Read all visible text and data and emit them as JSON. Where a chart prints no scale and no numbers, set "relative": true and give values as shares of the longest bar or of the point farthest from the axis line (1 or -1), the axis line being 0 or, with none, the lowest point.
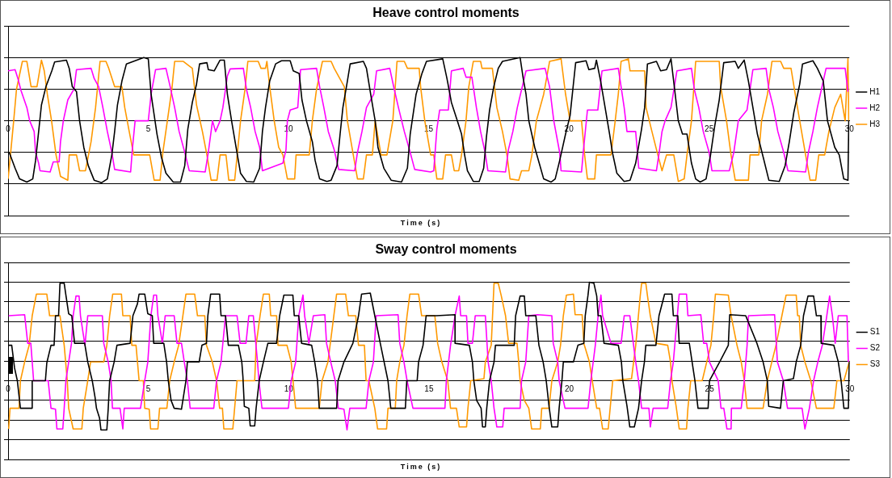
{
  "chart_data": [
    {
      "type": "line",
      "title": "Heave control moments",
      "xlabel": "Time (s)",
      "relative": true,
      "xlim": [
        0,
        30
      ],
      "xticks": [
        0,
        5,
        10,
        15,
        20,
        25,
        30
      ],
      "grid": "y",
      "legend": "right",
      "marker": "none",
      "series": [
        {
          "name": "H1",
          "color": "#000000",
          "x": [
            0.04,
            0.25,
            0.41,
            0.67,
            0.88,
            0.98,
            1.09,
            1.19,
            1.35,
            1.56,
            1.66,
            2.08,
            2.18,
            2.29,
            2.44,
            2.55,
            2.7,
            2.86,
            3.07,
            3.33,
            3.54,
            3.7,
            3.8,
            3.9,
            4.06,
            4.22,
            4.84,
            5,
            5.1,
            5.31,
            5.47,
            5.63,
            5.89,
            6.15,
            6.3,
            6.41,
            6.57,
            6.72,
            6.83,
            7.09,
            7.14,
            7.35,
            7.56,
            7.71,
            7.82,
            7.97,
            8.13,
            8.29,
            8.5,
            8.76,
            8.97,
            9.07,
            9.18,
            9.33,
            9.54,
            9.75,
            10.06,
            10.17,
            10.38,
            10.48,
            10.64,
            10.85,
            10.95,
            11.11,
            11.37,
            11.52,
            11.73,
            11.84,
            11.94,
            12.1,
            12.2,
            12.67,
            12.78,
            12.93,
            13.09,
            13.19,
            13.4,
            13.66,
            14.03,
            14.24,
            14.34,
            14.55,
            14.76,
            14.92,
            15.5,
            15.65,
            15.81,
            16.02,
            16.17,
            16.28,
            16.38,
            16.59,
            16.8,
            16.96,
            17.06,
            17.17,
            17.32,
            17.48,
            17.63,
            18.26,
            18.37,
            18.47,
            18.57,
            18.78,
            18.94,
            19.1,
            19.36,
            19.51,
            19.67,
            19.88,
            20.04,
            20.14,
            20.24,
            20.61,
            20.71,
            20.92,
            20.98,
            21.13,
            21.29,
            21.45,
            21.55,
            21.71,
            21.97,
            22.18,
            22.38,
            22.59,
            22.7,
            22.8,
            23.12,
            23.27,
            23.48,
            23.64,
            23.79,
            23.9,
            24.05,
            24.21,
            24.37,
            24.52,
            24.68,
            24.89,
            25.05,
            25.2,
            25.36,
            25.52,
            25.93,
            26.04,
            26.25,
            26.4,
            26.56,
            26.72,
            26.93,
            27.13,
            27.5,
            27.71,
            27.86,
            28.02,
            28.23,
            28.33,
            28.7,
            28.86,
            29.07,
            29.22,
            29.48,
            29.64,
            29.8,
            29.95,
            29.98
          ],
          "values": [
            -0.5,
            -0.75,
            -0.92,
            -0.97,
            -0.92,
            -0.63,
            -0.17,
            0.25,
            0.54,
            0.79,
            0.93,
            0.96,
            0.83,
            0.54,
            0.46,
            0,
            -0.42,
            -0.71,
            -0.94,
            -0.98,
            -0.92,
            -0.54,
            -0.17,
            0.25,
            0.63,
            0.9,
            1,
            0.98,
            0.42,
            -0.21,
            -0.58,
            -0.83,
            -0.97,
            -0.97,
            -0.71,
            -0.13,
            0.29,
            0.58,
            0.9,
            0.92,
            0.81,
            0.79,
            0.96,
            0.96,
            0.42,
            0,
            -0.42,
            -0.83,
            -0.96,
            -0.97,
            -0.75,
            -0.17,
            0.21,
            0.63,
            0.9,
            0.95,
            0.95,
            0.79,
            0.75,
            0.33,
            0,
            -0.33,
            -0.63,
            -0.92,
            -0.96,
            -0.94,
            -0.71,
            -0.21,
            0.21,
            0.63,
            0.9,
            0.94,
            0.83,
            0.42,
            0,
            -0.42,
            -0.75,
            -0.94,
            -0.97,
            -0.75,
            -0.21,
            0.42,
            0.75,
            0.94,
            0.98,
            0.67,
            0.29,
            0,
            -0.21,
            -0.54,
            -0.79,
            -0.96,
            -0.96,
            -0.75,
            -0.25,
            0.17,
            0.54,
            0.83,
            0.94,
            1,
            0.67,
            0.42,
            0,
            -0.42,
            -0.67,
            -0.92,
            -0.97,
            -0.92,
            -0.63,
            -0.21,
            0.08,
            0.5,
            0.92,
            0.95,
            0.81,
            0.83,
            0.96,
            0.63,
            0.21,
            -0.21,
            -0.5,
            -0.83,
            -0.96,
            -0.94,
            -0.67,
            -0.13,
            0.21,
            0.9,
            0.94,
            0.79,
            0.81,
            0.98,
            0.42,
            0,
            -0.21,
            -0.21,
            -0.67,
            -0.92,
            -0.97,
            -0.92,
            -0.54,
            -0.08,
            0.33,
            0.92,
            0.94,
            0.83,
            0.96,
            0.63,
            0.21,
            -0.21,
            -0.58,
            -0.94,
            -0.96,
            -0.71,
            -0.33,
            0.13,
            0.58,
            0.9,
            0.95,
            0.83,
            0.63,
            0,
            -0.42,
            -0.54,
            -0.92,
            -0.94,
            0
          ]
        },
        {
          "name": "H2",
          "color": "#ff00ff",
          "x": [
            0,
            0.25,
            0.35,
            0.46,
            0.67,
            0.77,
            0.93,
            0.98,
            1.09,
            1.14,
            1.5,
            1.61,
            1.82,
            1.87,
            1.97,
            2.13,
            2.35,
            2.44,
            2.96,
            3.07,
            3.23,
            3.38,
            3.54,
            3.7,
            3.8,
            4.37,
            4.43,
            4.53,
            5,
            5.1,
            5.26,
            5.63,
            5.78,
            5.94,
            6.1,
            6.3,
            6.46,
            7.03,
            7.14,
            7.29,
            7.4,
            7.56,
            7.66,
            7.82,
            7.92,
            8.39,
            8.5,
            8.65,
            8.81,
            8.97,
            9.07,
            9.8,
            9.91,
            9.96,
            10.06,
            10.33,
            10.43,
            11,
            11.11,
            11.26,
            11.42,
            11.63,
            11.79,
            12.36,
            12.46,
            12.62,
            12.78,
            13.04,
            13.14,
            13.61,
            13.77,
            13.92,
            14.13,
            14.34,
            14.5,
            15.07,
            15.18,
            15.29,
            15.39,
            15.7,
            15.81,
            16.23,
            16.33,
            16.54,
            16.7,
            16.85,
            17.01,
            17.11,
            17.74,
            17.84,
            18,
            18.16,
            18.47,
            19.15,
            19.31,
            19.46,
            19.67,
            19.72,
            20.45,
            20.51,
            20.66,
            21.03,
            21.18,
            21.76,
            21.86,
            21.97,
            22.07,
            22.38,
            22.49,
            23.12,
            23.22,
            23.32,
            23.43,
            23.64,
            23.85,
            24.37,
            24.47,
            24.63,
            24.79,
            25,
            25.1,
            25.72,
            25.88,
            26.04,
            26.35,
            26.56,
            27.03,
            27.13,
            27.29,
            27.45,
            27.66,
            27.81,
            28.44,
            28.54,
            28.7,
            28.86,
            29.17,
            29.85,
            29.95
          ],
          "values": [
            0.79,
            0.81,
            0.67,
            0.48,
            0.21,
            0,
            -0.17,
            -0.5,
            -0.67,
            -0.79,
            -0.81,
            -0.65,
            -0.65,
            -0.33,
            0,
            0.33,
            0.5,
            0.81,
            0.83,
            0.67,
            0.54,
            0.21,
            -0.17,
            -0.5,
            -0.77,
            -0.81,
            -0.46,
            0,
            0,
            0.42,
            0.81,
            0.83,
            0.54,
            0.21,
            -0.17,
            -0.5,
            -0.79,
            -0.81,
            -0.5,
            0,
            -0.17,
            0,
            0.21,
            0.71,
            0.82,
            0.83,
            0.5,
            0.21,
            -0.17,
            -0.42,
            -0.79,
            -0.67,
            -0.46,
            0,
            0.17,
            0.21,
            0.81,
            0.83,
            0.54,
            0.21,
            -0.17,
            -0.46,
            -0.77,
            -0.79,
            -0.5,
            -0.17,
            0.21,
            0.42,
            0.79,
            0.83,
            0.5,
            0.21,
            -0.17,
            -0.5,
            -0.77,
            -0.81,
            -0.79,
            -0.13,
            0.17,
            0.17,
            0.79,
            0.83,
            0.69,
            0.69,
            0.21,
            -0.17,
            -0.5,
            -0.79,
            -0.81,
            -0.46,
            -0.17,
            0.21,
            0.79,
            0.83,
            0.54,
            0,
            -0.5,
            -0.79,
            -0.81,
            -0.5,
            0.17,
            0.17,
            0.79,
            0.83,
            0.54,
            0.21,
            -0.17,
            -0.17,
            -0.75,
            -0.79,
            -0.5,
            -0.17,
            0,
            0.21,
            0.79,
            0.83,
            0.5,
            0.21,
            -0.17,
            -0.5,
            -0.79,
            -0.79,
            -0.5,
            0,
            0.17,
            0.81,
            0.83,
            0.5,
            0.21,
            -0.17,
            -0.5,
            -0.79,
            -0.81,
            -0.5,
            -0.17,
            0.21,
            0.83,
            0.83,
            0.46
          ]
        },
        {
          "name": "H3",
          "color": "#ff9900",
          "x": [
            0,
            0.04,
            0.2,
            0.3,
            0.51,
            0.67,
            0.82,
            1.03,
            1.19,
            1.29,
            1.4,
            1.55,
            1.71,
            1.87,
            2.13,
            2.18,
            2.44,
            2.55,
            2.76,
            2.96,
            3.12,
            3.28,
            3.49,
            3.59,
            3.8,
            4.06,
            4.16,
            4.32,
            4.48,
            5.05,
            5.21,
            5.42,
            5.52,
            5.68,
            5.84,
            5.94,
            6.25,
            6.57,
            6.72,
            6.93,
            7.09,
            7.24,
            7.45,
            7.56,
            7.77,
            7.87,
            8.08,
            8.18,
            8.29,
            8.45,
            8.55,
            8.92,
            9.02,
            9.18,
            9.23,
            9.33,
            9.49,
            9.65,
            9.8,
            9.96,
            10.22,
            10.27,
            10.74,
            10.85,
            11,
            11.21,
            11.52,
            11.63,
            11.99,
            12.1,
            12.31,
            12.46,
            12.67,
            12.78,
            12.99,
            13.09,
            13.3,
            13.51,
            13.72,
            13.87,
            14.13,
            14.24,
            14.66,
            14.71,
            14.86,
            15.07,
            15.18,
            15.29,
            15.5,
            15.6,
            15.81,
            15.91,
            16.07,
            16.17,
            16.33,
            16.43,
            16.59,
            16.85,
            16.9,
            17.27,
            17.43,
            17.63,
            17.79,
            17.9,
            18.21,
            18.31,
            18.57,
            18.68,
            18.84,
            19.1,
            19.31,
            19.72,
            19.88,
            20.04,
            20.45,
            20.56,
            20.66,
            20.92,
            20.98,
            21.5,
            21.65,
            21.76,
            21.86,
            22.12,
            22.18,
            22.7,
            22.75,
            22.96,
            23.17,
            23.32,
            23.48,
            23.74,
            23.9,
            24.11,
            24.21,
            24.37,
            24.52,
            25.36,
            25.41,
            25.62,
            25.78,
            25.93,
            26.4,
            26.46,
            26.77,
            26.87,
            27.08,
            27.24,
            27.55,
            27.66,
            27.92,
            28.07,
            28.23,
            28.44,
            28.6,
            28.8,
            28.91,
            29.12,
            29.27,
            29.48,
            29.69,
            29.85,
            29.95,
            29.98
          ],
          "values": [
            -0.92,
            -0.75,
            0,
            0.5,
            0.94,
            0.94,
            0.54,
            0.54,
            0.96,
            0.79,
            0.42,
            0,
            -0.54,
            -0.88,
            -0.94,
            -0.54,
            -0.54,
            -0.79,
            -0.79,
            -0.33,
            0.21,
            0.94,
            0.94,
            0.83,
            0.54,
            0.54,
            0.21,
            -0.17,
            -0.54,
            -0.54,
            -0.94,
            -0.94,
            -0.5,
            0,
            0.5,
            0.94,
            0.94,
            0.83,
            0.25,
            -0.17,
            -0.54,
            -0.94,
            -0.94,
            -0.54,
            -0.54,
            -0.94,
            -0.94,
            -0.5,
            0,
            0.5,
            0.94,
            0.94,
            0.83,
            0.83,
            0.94,
            0.54,
            0,
            -0.42,
            -0.54,
            -0.92,
            -0.92,
            -0.54,
            -0.54,
            0,
            0.5,
            0.94,
            0.94,
            0.83,
            0.54,
            0,
            -0.54,
            -0.92,
            -0.92,
            -0.54,
            -0.54,
            0,
            -0.54,
            -0.54,
            0,
            0.94,
            0.94,
            0.83,
            0.83,
            0.54,
            0,
            -0.54,
            -0.54,
            -0.92,
            -0.92,
            -0.54,
            -0.54,
            -0.79,
            -0.79,
            -0.54,
            0,
            0.54,
            0.94,
            0.94,
            0.83,
            0.83,
            0.21,
            -0.17,
            -0.54,
            -0.92,
            -0.94,
            -0.79,
            -0.79,
            -0.54,
            0,
            0.42,
            0.94,
            0.98,
            0.42,
            0,
            0,
            -0.54,
            -0.92,
            -0.92,
            -0.54,
            -0.54,
            0,
            0.42,
            0.94,
            0.98,
            0.79,
            0.79,
            0.21,
            -0.17,
            -0.54,
            -0.79,
            -0.54,
            -0.54,
            -0.96,
            -0.92,
            -0.54,
            0,
            0.94,
            0.94,
            0.54,
            0,
            -0.54,
            -0.94,
            -0.94,
            -0.54,
            -0.54,
            0,
            0.42,
            0.94,
            0.94,
            0.83,
            0.83,
            0.42,
            0,
            -0.54,
            -0.94,
            -0.94,
            -0.54,
            -0.54,
            -0.17,
            0.21,
            0.42,
            0,
            0.98,
            0
          ]
        }
      ]
    },
    {
      "type": "line",
      "title": "Sway control moments",
      "xlabel": "Time (s)",
      "relative": true,
      "xlim": [
        0,
        30
      ],
      "xticks": [
        0,
        5,
        10,
        15,
        20,
        25,
        30
      ],
      "grid": "y",
      "legend": "right",
      "marker": "none",
      "series": [
        {
          "name": "S1",
          "color": "#000000",
          "x": [
            0.02,
            0.13,
            0.23,
            0.33,
            0.44,
            0.86,
            0.86,
            1.33,
            1.38,
            1.53,
            1.64,
            1.69,
            1.8,
            1.85,
            2,
            2.06,
            2.16,
            2.27,
            2.37,
            2.73,
            2.84,
            3,
            3.1,
            3.15,
            3.26,
            3.31,
            3.52,
            3.57,
            3.62,
            3.78,
            3.88,
            4.35,
            4.45,
            4.61,
            4.67,
            4.87,
            4.98,
            5.14,
            5.19,
            5.55,
            5.65,
            5.71,
            5.81,
            5.92,
            6.18,
            6.34,
            6.39,
            6.81,
            6.91,
            7.07,
            7.12,
            7.22,
            7.54,
            7.59,
            7.75,
            7.85,
            8.21,
            8.33,
            8.37,
            8.42,
            8.58,
            8.63,
            8.79,
            8.84,
            8.95,
            9.1,
            9.26,
            9.57,
            9.68,
            9.83,
            10.15,
            10.2,
            10.36,
            10.46,
            10.82,
            10.93,
            11.03,
            11.09,
            11.71,
            11.76,
            11.97,
            12.29,
            12.49,
            12.6,
            12.91,
            13.07,
            13.28,
            13.54,
            13.64,
            14.16,
            14.21,
            14.58,
            14.63,
            14.79,
            14.9,
            15.26,
            15.93,
            15.93,
            16.44,
            16.55,
            16.6,
            16.7,
            16.86,
            16.91,
            17.01,
            17.06,
            17.16,
            17.32,
            17.37,
            18.04,
            18.09,
            18.25,
            18.4,
            18.45,
            18.81,
            18.92,
            19.07,
            19.18,
            19.28,
            19.38,
            19.59,
            19.64,
            19.74,
            19.79,
            20.15,
            20.31,
            20.52,
            20.57,
            20.67,
            20.72,
            20.88,
            20.98,
            21.03,
            21.13,
            21.24,
            21.75,
            21.86,
            21.91,
            22.06,
            22.16,
            22.32,
            22.47,
            22.58,
            22.68,
            22.73,
            23.09,
            23.2,
            23.4,
            23.66,
            23.71,
            23.87,
            23.92,
            24.28,
            24.38,
            24.48,
            24.59,
            24.95,
            25,
            25.36,
            25.67,
            25.72,
            26.29,
            26.69,
            26.91,
            27.06,
            27.11,
            27.53,
            27.63,
            27.99,
            28.09,
            28.25,
            28.35,
            28.51,
            28.71,
            28.81,
            28.97,
            28.98,
            29.43,
            29.59,
            29.69,
            29.79,
            29.95,
            29.98
          ],
          "values": [
            0.36,
            0.36,
            0.13,
            0,
            -0.28,
            -0.28,
            0,
            0,
            0.18,
            0.36,
            0.36,
            0.66,
            0.66,
            0.99,
            0.99,
            0.87,
            0.68,
            0.66,
            0.38,
            0.38,
            0.19,
            0,
            -0.17,
            -0.28,
            -0.38,
            -0.5,
            -0.5,
            -0.28,
            0,
            0.19,
            0.36,
            0.38,
            0.66,
            0.78,
            0.88,
            0.88,
            0.68,
            0.66,
            0.38,
            0.38,
            0.19,
            0,
            -0.2,
            -0.28,
            -0.29,
            0,
            0.19,
            0.19,
            0.36,
            0.38,
            0.66,
            0.88,
            0.88,
            0.66,
            0.66,
            0.36,
            0.36,
            0.19,
            0.04,
            -0.26,
            -0.28,
            -0.46,
            -0.46,
            -0.28,
            0,
            0.19,
            0.38,
            0.38,
            0.66,
            0.87,
            0.87,
            0.66,
            0.66,
            0.38,
            0.36,
            0.19,
            0,
            -0.28,
            -0.28,
            0,
            0.19,
            0.38,
            0.66,
            0.88,
            0.89,
            0.66,
            0.36,
            0,
            -0.28,
            -0.28,
            0,
            0,
            0.19,
            0.36,
            0.66,
            0.66,
            0.67,
            0.38,
            0.36,
            0.19,
            0,
            -0.2,
            -0.28,
            -0.47,
            -0.47,
            -0.28,
            0,
            0.19,
            0.36,
            0.36,
            0.66,
            0.86,
            0.86,
            0.66,
            0.66,
            0.36,
            0.19,
            0,
            -0.26,
            -0.47,
            -0.47,
            -0.28,
            0,
            0.19,
            0.19,
            0.36,
            0.38,
            0.66,
            0.87,
            1,
            0.99,
            0.86,
            0.66,
            0.66,
            0.38,
            0.36,
            0.19,
            0,
            -0.26,
            -0.47,
            -0.47,
            -0.28,
            0,
            0.19,
            0.36,
            0.36,
            0.66,
            0.88,
            0.88,
            0.66,
            0.66,
            0.38,
            0.38,
            0.19,
            0,
            -0.28,
            -0.28,
            0,
            0.19,
            0.36,
            0.67,
            0.66,
            0.38,
            0.19,
            0,
            -0.26,
            -0.28,
            0,
            0.02,
            0.19,
            0.36,
            0.66,
            0.86,
            0.86,
            0.66,
            0.66,
            0.38,
            0.36,
            0.19,
            0,
            -0.28,
            -0.28,
            0.19
          ]
        },
        {
          "name": "S2",
          "color": "#ff00ff",
          "x": [
            0.02,
            0.59,
            0.7,
            0.81,
            0.91,
            1.43,
            1.53,
            1.69,
            1.74,
            1.95,
            2,
            2.06,
            2.16,
            2.26,
            2.32,
            2.42,
            2.53,
            2.58,
            2.74,
            2.84,
            3.36,
            3.41,
            3.57,
            3.67,
            3.72,
            3.99,
            4.09,
            4.14,
            4.72,
            4.87,
            4.98,
            5.09,
            5.19,
            5.29,
            5.34,
            5.5,
            5.6,
            5.92,
            6.02,
            6.18,
            6.28,
            6.39,
            6.49,
            7.33,
            7.43,
            7.59,
            7.75,
            8.16,
            8.27,
            8.48,
            8.58,
            8.74,
            8.89,
            8.94,
            9.05,
            9.99,
            10.09,
            10.25,
            10.36,
            10.51,
            10.57,
            10.72,
            10.88,
            11.29,
            11.35,
            11.5,
            11.66,
            11.77,
            11.97,
            12.08,
            12.18,
            12.76,
            12.86,
            13.02,
            13.12,
            13.9,
            13.96,
            14.11,
            14.22,
            14.43,
            15.57,
            15.62,
            15.77,
            15.93,
            16.08,
            16.13,
            16.34,
            16.39,
            16.55,
            16.65,
            17.01,
            17.11,
            17.22,
            17.32,
            17.42,
            17.63,
            17.68,
            18.25,
            18.3,
            18.45,
            18.56,
            18.87,
            19.38,
            19.43,
            19.59,
            19.64,
            19.85,
            20.67,
            20.77,
            20.93,
            21.03,
            21.13,
            21.19,
            21.49,
            21.85,
            21.96,
            22.16,
            22.37,
            22.47,
            22.58,
            22.84,
            22.89,
            22.99,
            23.51,
            23.61,
            23.71,
            23.92,
            24.18,
            24.23,
            24.69,
            24.79,
            24.9,
            25,
            25.31,
            25.41,
            25.51,
            25.62,
            25.77,
            25.78,
            26.13,
            26.24,
            26.34,
            26.39,
            27.32,
            27.42,
            27.63,
            27.78,
            28.3,
            28.4,
            28.56,
            28.71,
            28.86,
            29.02,
            29.18,
            29.28,
            29.38,
            29.48,
            29.59,
            29.9,
            29.95
          ],
          "values": [
            0.66,
            0.67,
            0.38,
            0.38,
            0,
            0,
            -0.28,
            -0.29,
            -0.49,
            -0.49,
            -0.28,
            0,
            0.19,
            0.38,
            0.66,
            0.86,
            0.86,
            0.66,
            0.36,
            0.66,
            0.66,
            0.38,
            0.19,
            0,
            -0.28,
            -0.28,
            -0.49,
            -0.28,
            -0.28,
            0,
            0.19,
            0.66,
            0.87,
            0.87,
            0.66,
            0.38,
            0.66,
            0.66,
            0.38,
            0.38,
            0.19,
            0,
            -0.28,
            -0.28,
            0,
            0.19,
            0.66,
            0.66,
            0.38,
            0.38,
            0.66,
            0.66,
            0.19,
            0,
            -0.28,
            -0.28,
            0,
            0.19,
            0.66,
            0.87,
            0.66,
            0.38,
            0.66,
            0.67,
            0.38,
            0.19,
            0,
            -0.28,
            -0.29,
            -0.5,
            -0.28,
            -0.28,
            0,
            0.19,
            0.66,
            0.67,
            0.38,
            0.19,
            0,
            -0.28,
            -0.28,
            0,
            0.36,
            0.66,
            0.86,
            0.66,
            0.66,
            0.38,
            0.38,
            0.66,
            0.66,
            0.19,
            0,
            -0.28,
            -0.47,
            -0.47,
            -0.28,
            -0.28,
            0,
            0.19,
            0.66,
            0.67,
            0.66,
            0.38,
            0.19,
            0,
            -0.28,
            -0.28,
            0,
            0.36,
            0.66,
            0.87,
            0.66,
            0.38,
            0.38,
            0.66,
            0.66,
            0.19,
            0,
            -0.28,
            -0.28,
            -0.47,
            -0.28,
            -0.28,
            0,
            0.19,
            0.88,
            0.88,
            0.66,
            0.67,
            0.38,
            0.38,
            0.19,
            0,
            -0.28,
            -0.28,
            -0.49,
            -0.49,
            -0.28,
            -0.28,
            0,
            0.36,
            0.66,
            0.67,
            0.19,
            0,
            -0.28,
            -0.28,
            -0.49,
            -0.28,
            0,
            0.19,
            0.36,
            0.66,
            0.86,
            0.66,
            0.38,
            0.66,
            0.66,
            0.19
          ]
        },
        {
          "name": "S3",
          "color": "#ff9900",
          "x": [
            0.02,
            0.07,
            0.39,
            0.44,
            0.59,
            0.75,
            0.86,
            1.01,
            1.38,
            1.48,
            1.85,
            2,
            2.11,
            2.16,
            2.32,
            2.63,
            2.68,
            2.84,
            2.94,
            3.41,
            3.52,
            3.62,
            3.73,
            4.04,
            4.09,
            4.35,
            4.41,
            4.56,
            4.67,
            4.82,
            4.87,
            5.03,
            5.08,
            5.34,
            5.4,
            5.66,
            5.76,
            5.92,
            6.08,
            6.23,
            6.34,
            6.65,
            6.75,
            7.01,
            7.07,
            7.28,
            7.43,
            7.54,
            7.64,
            7.69,
            8.01,
            8.16,
            8.79,
            8.84,
            8.98,
            9.1,
            9.31,
            9.36,
            9.57,
            9.62,
            9.94,
            10.09,
            10.25,
            11.09,
            11.19,
            11.4,
            11.61,
            11.71,
            12.03,
            12.13,
            12.39,
            12.49,
            12.7,
            12.76,
            12.86,
            13.07,
            13.17,
            13.49,
            13.54,
            13.8,
            13.85,
            13.96,
            14.11,
            14.22,
            14.32,
            14.63,
            14.74,
            15.21,
            15.31,
            15.46,
            15.67,
            15.77,
            15.98,
            16.08,
            16.34,
            16.39,
            16.49,
            16.96,
            17.01,
            17.22,
            17.32,
            17.47,
            17.58,
            17.73,
            17.84,
            18.14,
            18.2,
            18.25,
            18.4,
            18.56,
            18.66,
            18.97,
            19.02,
            19.28,
            19.38,
            19.59,
            19.69,
            19.79,
            19.9,
            20.15,
            20.21,
            20.46,
            20.52,
            20.72,
            20.82,
            20.98,
            21.08,
            21.19,
            21.39,
            21.55,
            22.22,
            22.37,
            22.53,
            22.58,
            22.73,
            22.79,
            22.89,
            23.09,
            23.51,
            23.61,
            23.66,
            23.81,
            23.92,
            24.18,
            24.23,
            24.33,
            24.74,
            24.9,
            25.05,
            25.15,
            25.21,
            25.67,
            25.77,
            25.98,
            26.13,
            26.24,
            26.34,
            26.91,
            27.06,
            27.22,
            27.37,
            27.58,
            27.73,
            28.09,
            28.14,
            28.2,
            28.25,
            28.4,
            28.61,
            28.81,
            29.43,
            29.54,
            29.79,
            29.98
          ],
          "values": [
            -0.49,
            -0.28,
            -0.28,
            0,
            0.19,
            0.36,
            0.66,
            0.88,
            0.88,
            0.66,
            0.66,
            0.36,
            0,
            -0.28,
            -0.49,
            -0.49,
            -0.28,
            0,
            0.19,
            0.19,
            0.36,
            0.66,
            0.88,
            0.88,
            0.66,
            0.66,
            0.36,
            0.36,
            0,
            0,
            -0.28,
            -0.29,
            -0.49,
            -0.49,
            -0.28,
            -0.28,
            0,
            0.19,
            0.36,
            0.66,
            0.88,
            0.88,
            0.66,
            0.66,
            0.36,
            0.19,
            0,
            -0.28,
            -0.28,
            -0.49,
            -0.49,
            0,
            0,
            0.36,
            0.66,
            0.88,
            0.88,
            0.66,
            0.66,
            0.36,
            0.36,
            0.19,
            -0.28,
            -0.28,
            0,
            0.19,
            0.66,
            0.88,
            0.88,
            0.66,
            0.66,
            0.36,
            0.36,
            0,
            0,
            -0.28,
            -0.49,
            -0.49,
            -0.28,
            -0.28,
            0,
            0.19,
            0.36,
            0.66,
            0.88,
            0.88,
            0.66,
            0.66,
            0.38,
            0.19,
            0,
            -0.28,
            -0.28,
            -0.47,
            -0.47,
            -0.28,
            0,
            0.02,
            0.19,
            0.36,
            0.99,
            0.99,
            0.86,
            0.66,
            0.38,
            0.38,
            0.19,
            0,
            -0.2,
            -0.28,
            -0.49,
            -0.49,
            -0.28,
            -0.28,
            0,
            0.19,
            0.36,
            0.66,
            0.87,
            0.88,
            0.67,
            0.67,
            0.38,
            0.19,
            0,
            -0.28,
            -0.28,
            -0.49,
            -0.49,
            0,
            0.02,
            0.36,
            0.86,
            0.99,
            0.99,
            0.86,
            0.66,
            0.38,
            0.36,
            0.19,
            0,
            -0.26,
            -0.49,
            -0.49,
            -0.28,
            0,
            0,
            0.19,
            0.36,
            0.66,
            0.88,
            0.87,
            0.66,
            0.36,
            0.19,
            0,
            -0.28,
            -0.28,
            0,
            0.19,
            0.36,
            0.66,
            0.87,
            0.87,
            0.66,
            0.66,
            0.36,
            0.19,
            0,
            -0.28,
            -0.28,
            0,
            0,
            0.19
          ]
        }
      ]
    }
  ]
}
